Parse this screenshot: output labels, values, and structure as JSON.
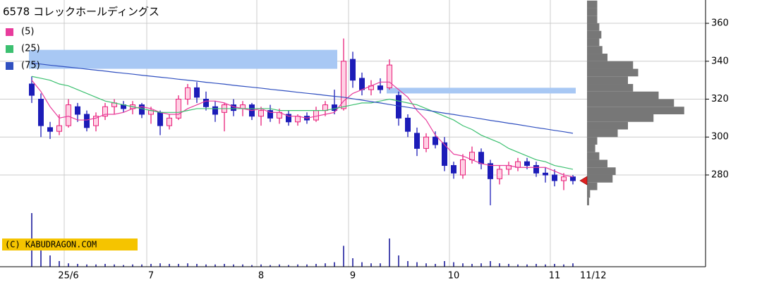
{
  "chart_data": {
    "type": "candlestick",
    "title": "6578 コレックホールディングス",
    "categories": [
      null,
      null,
      null,
      null,
      "25/6",
      null,
      null,
      null,
      null,
      null,
      null,
      null,
      null,
      "7",
      null,
      null,
      null,
      null,
      null,
      null,
      null,
      null,
      null,
      null,
      null,
      "8",
      null,
      null,
      null,
      null,
      null,
      null,
      null,
      null,
      null,
      "9",
      null,
      null,
      null,
      null,
      null,
      null,
      null,
      null,
      null,
      null,
      "10",
      null,
      null,
      null,
      null,
      null,
      null,
      null,
      null,
      null,
      null,
      "11",
      null,
      "11/12"
    ],
    "open": [
      328,
      320,
      305,
      303,
      306,
      316,
      312,
      306,
      311,
      316,
      317,
      315,
      317,
      312,
      313,
      306,
      310,
      320,
      326,
      320,
      316,
      313,
      317,
      315,
      317,
      311,
      314,
      310,
      312,
      308,
      311,
      309,
      314,
      317,
      315,
      341,
      331,
      325,
      327,
      326,
      322,
      310,
      302,
      294,
      300,
      297,
      285,
      280,
      288,
      292,
      286,
      278,
      283,
      284,
      287,
      285,
      281,
      280,
      277,
      279
    ],
    "high": [
      332,
      323,
      308,
      312,
      320,
      318,
      314,
      313,
      318,
      320,
      319,
      319,
      318,
      316,
      314,
      312,
      322,
      328,
      329,
      324,
      319,
      318,
      320,
      319,
      318,
      316,
      317,
      315,
      314,
      312,
      313,
      316,
      319,
      325,
      352,
      345,
      334,
      330,
      331,
      341,
      324,
      312,
      305,
      302,
      303,
      300,
      287,
      291,
      295,
      294,
      288,
      285,
      287,
      289,
      289,
      287,
      284,
      283,
      281,
      280
    ],
    "low": [
      318,
      300,
      299,
      301,
      305,
      308,
      303,
      303,
      309,
      312,
      313,
      312,
      310,
      307,
      301,
      304,
      309,
      317,
      318,
      314,
      308,
      303,
      311,
      311,
      309,
      306,
      308,
      307,
      306,
      306,
      307,
      308,
      311,
      312,
      314,
      326,
      322,
      322,
      323,
      325,
      306,
      300,
      290,
      292,
      294,
      282,
      278,
      278,
      286,
      283,
      264,
      275,
      280,
      282,
      283,
      279,
      276,
      274,
      272,
      275
    ],
    "close": [
      322,
      306,
      303,
      306,
      317,
      312,
      305,
      311,
      316,
      318,
      315,
      317,
      312,
      314,
      306,
      310,
      320,
      326,
      321,
      316,
      312,
      317,
      314,
      317,
      311,
      314,
      310,
      313,
      308,
      311,
      309,
      314,
      317,
      314,
      340,
      330,
      325,
      327,
      325,
      338,
      310,
      303,
      294,
      300,
      296,
      285,
      281,
      288,
      292,
      286,
      278,
      283,
      285,
      287,
      285,
      281,
      280,
      277,
      279,
      277
    ],
    "up_color": "#e8207a",
    "down_color": "#1c1cb8",
    "series": [
      {
        "name": "(5)",
        "color": "#e83c9c",
        "values": [
          330,
          324,
          316,
          310,
          311,
          309,
          309,
          310,
          312,
          312,
          313,
          315,
          316,
          315,
          313,
          312,
          312,
          315,
          317,
          319,
          319,
          318,
          316,
          315,
          314,
          315,
          313,
          313,
          311,
          311,
          310,
          311,
          312,
          313,
          319,
          323,
          325,
          327,
          329,
          329,
          325,
          321,
          314,
          309,
          301,
          296,
          291,
          290,
          288,
          286,
          285,
          285,
          285,
          284,
          284,
          284,
          284,
          282,
          280,
          279
        ]
      },
      {
        "name": "(25)",
        "color": "#3cc070",
        "values": [
          332,
          331,
          330,
          328,
          327,
          325,
          323,
          321,
          319,
          318,
          317,
          316,
          315,
          314,
          313,
          313,
          313,
          314,
          315,
          315,
          315,
          315,
          315,
          315,
          315,
          315,
          315,
          314,
          314,
          314,
          314,
          314,
          314,
          315,
          316,
          317,
          318,
          318,
          319,
          320,
          319,
          318,
          317,
          315,
          313,
          311,
          309,
          306,
          304,
          301,
          299,
          297,
          294,
          292,
          290,
          288,
          287,
          285,
          284,
          283
        ]
      },
      {
        "name": "(75)",
        "color": "#3050c0",
        "values": [
          339,
          338.5,
          337.9,
          337.4,
          336.9,
          336.4,
          335.8,
          335.3,
          334.8,
          334.2,
          333.7,
          333.2,
          332.6,
          332.1,
          331.6,
          331.1,
          330.5,
          330.0,
          329.5,
          328.9,
          328.4,
          327.9,
          327.3,
          326.8,
          326.3,
          325.8,
          325.2,
          324.7,
          324.2,
          323.6,
          323.1,
          322.6,
          322.0,
          321.5,
          321.0,
          320.2,
          319.5,
          318.7,
          318.0,
          317.2,
          316.4,
          315.7,
          314.9,
          314.2,
          313.4,
          312.6,
          311.9,
          311.1,
          310.4,
          309.6,
          308.8,
          308.1,
          307.3,
          306.6,
          305.8,
          305.0,
          304.3,
          303.5,
          302.8,
          302.0
        ]
      }
    ],
    "volume": [
      95,
      40,
      20,
      10,
      6,
      5,
      4,
      4,
      5,
      4,
      3,
      4,
      4,
      5,
      6,
      5,
      5,
      6,
      5,
      4,
      4,
      5,
      4,
      4,
      3,
      4,
      3,
      4,
      3,
      4,
      4,
      5,
      6,
      8,
      37,
      15,
      8,
      6,
      6,
      50,
      20,
      10,
      8,
      6,
      5,
      10,
      8,
      6,
      5,
      6,
      10,
      6,
      5,
      4,
      4,
      5,
      4,
      5,
      4,
      6
    ],
    "volume_lim": [
      0,
      100
    ],
    "volume_color": "#4a4ab0",
    "profile_bins": [
      264,
      268,
      272,
      276,
      280,
      284,
      288,
      292,
      296,
      300,
      304,
      308,
      312,
      316,
      320,
      324,
      328,
      332,
      336,
      340,
      344,
      348,
      352,
      356,
      360,
      364,
      368,
      372
    ],
    "profile": [
      2,
      3,
      10,
      25,
      28,
      20,
      12,
      8,
      10,
      30,
      40,
      65,
      95,
      85,
      70,
      45,
      40,
      50,
      45,
      20,
      15,
      12,
      14,
      12,
      10,
      10,
      10
    ],
    "profile_lim": [
      0,
      100
    ],
    "profile_color": "#777777",
    "zones": [
      {
        "from": 336,
        "to": 346,
        "start": 0,
        "end": 33,
        "color": "#a8c8f4"
      },
      {
        "from": 323,
        "to": 326,
        "start": 39,
        "end": 59,
        "color": "#a8c8f4"
      }
    ],
    "ylim": [
      231.6,
      372.3
    ],
    "yticks": [
      280,
      300,
      320,
      340,
      360
    ],
    "grid": true,
    "watermark": "(C) KABUDRAGON.COM",
    "marker_color": "#e02020"
  }
}
